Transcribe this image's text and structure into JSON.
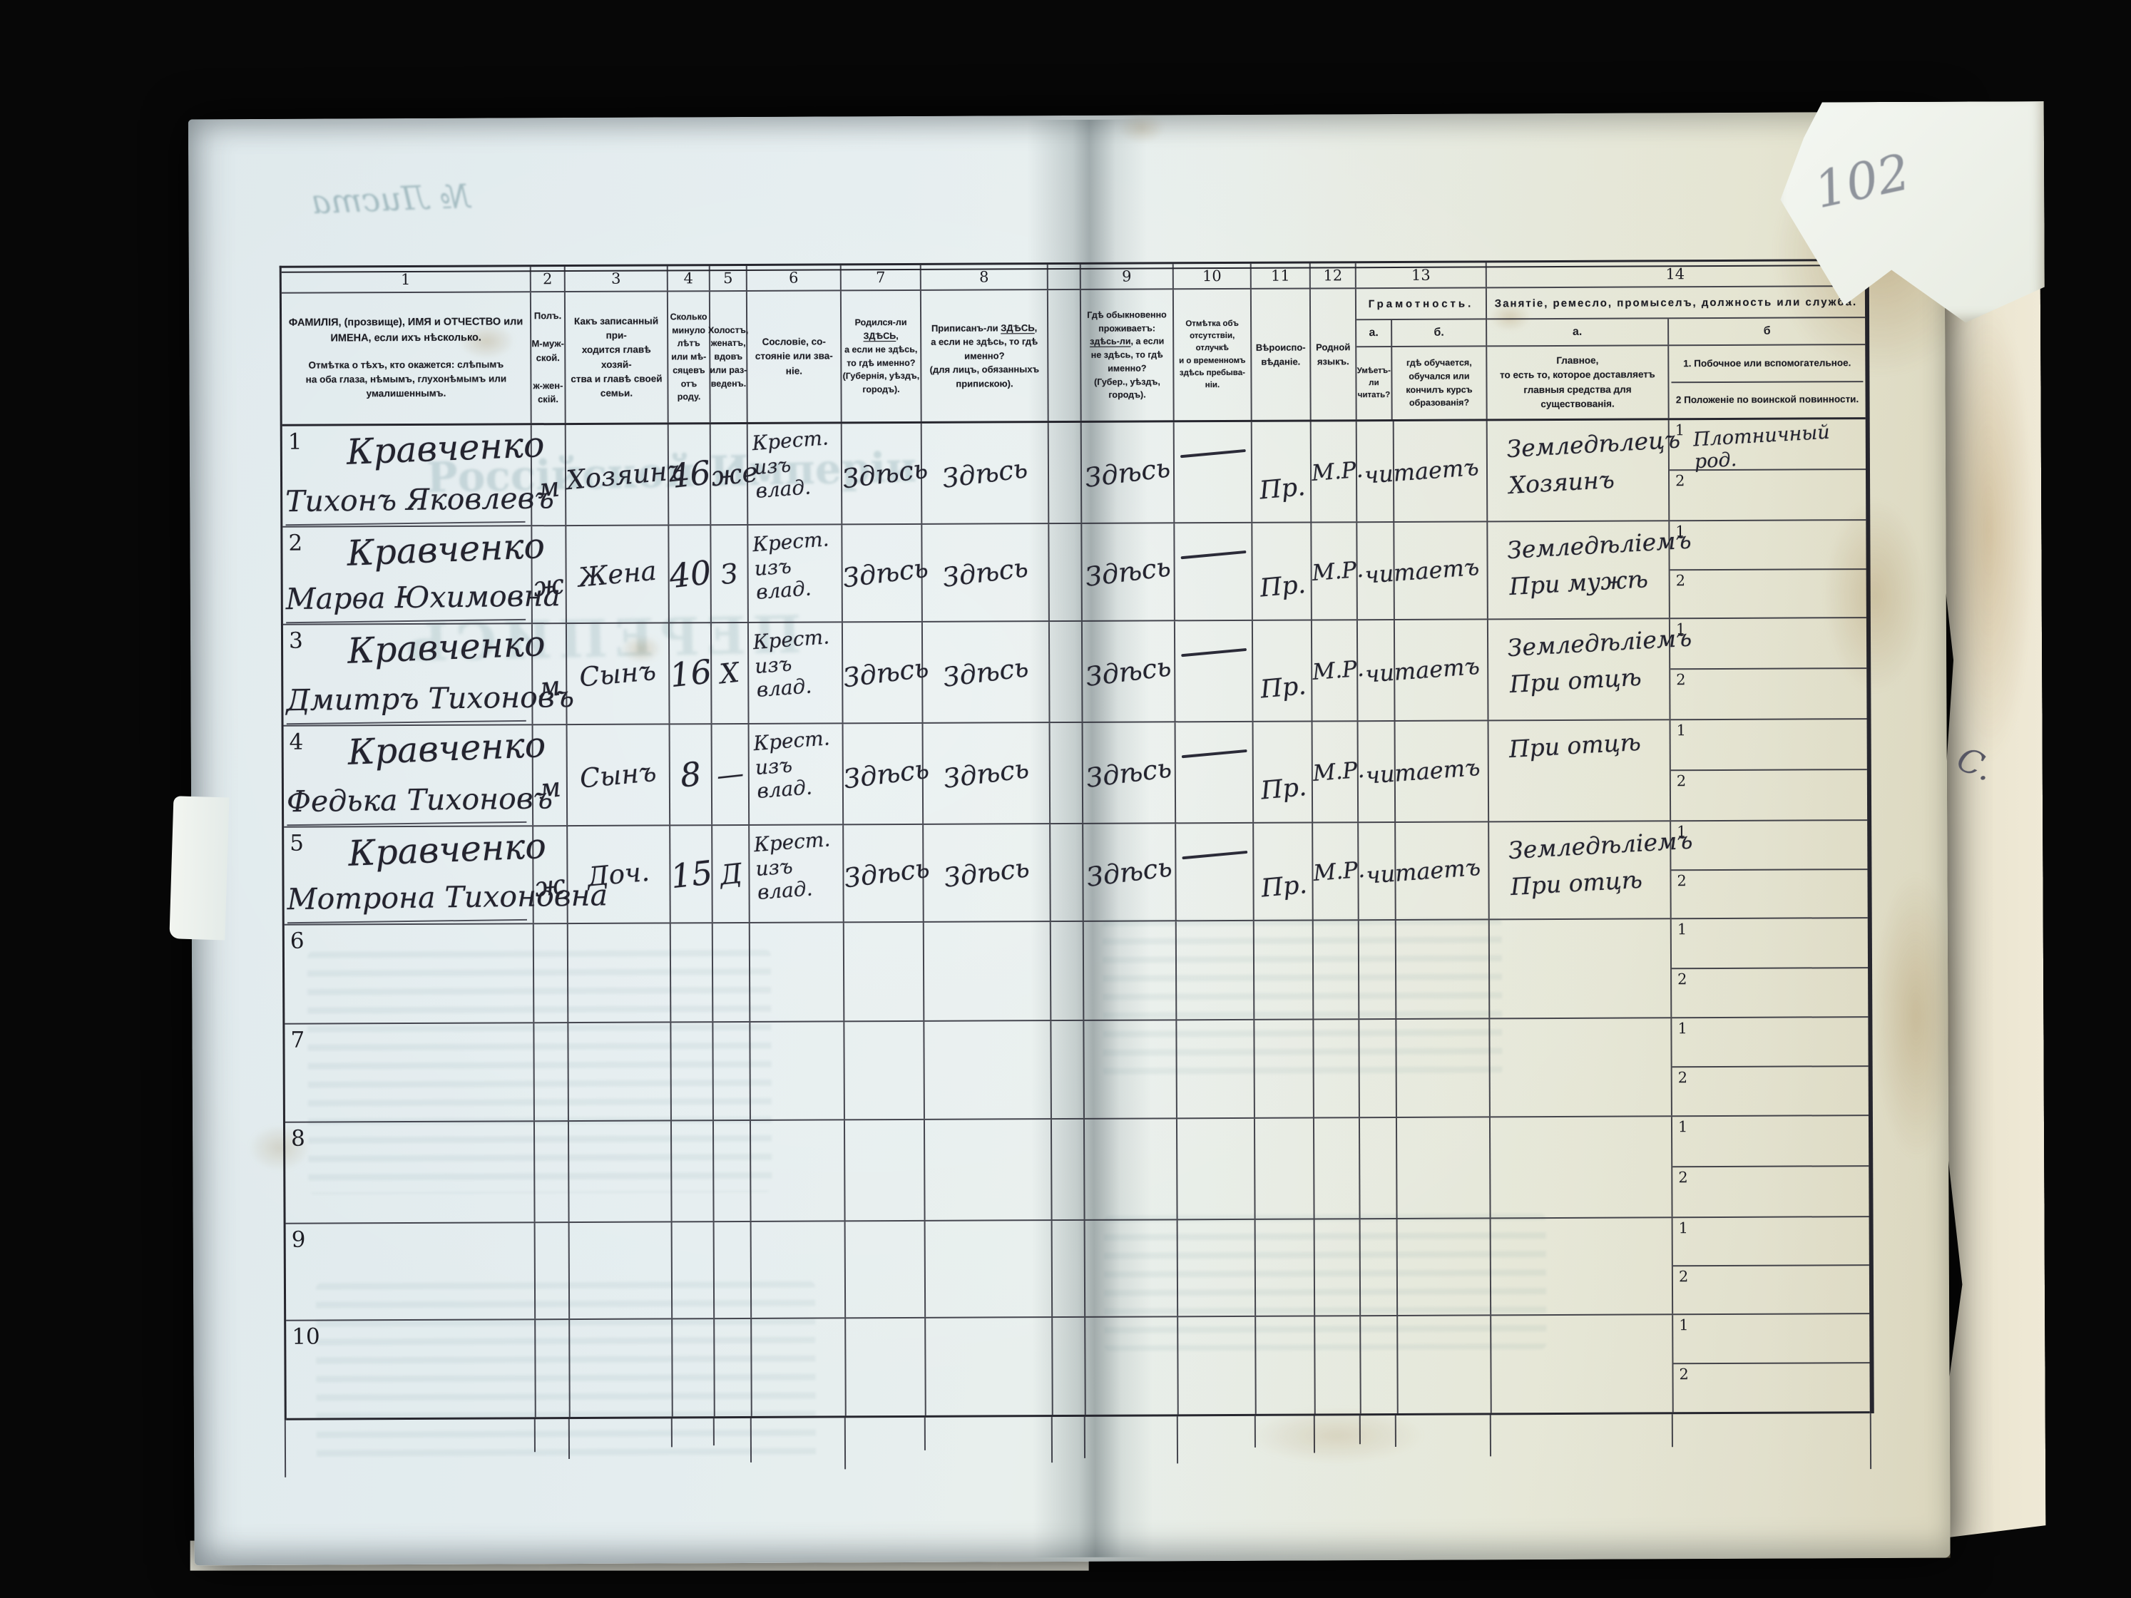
{
  "scan": {
    "page_number": "102",
    "ghosts": {
      "sheet_label": "№ Листа",
      "bleed_title": "Россійской Имперіи",
      "bleed_caps": "ПЕРЕПИСЬ"
    },
    "margin_mark": "С."
  },
  "table": {
    "column_numbers": [
      "1",
      "2",
      "3",
      "4",
      "5",
      "6",
      "7",
      "8",
      "9",
      "10",
      "11",
      "12",
      "13",
      "14"
    ],
    "headers": {
      "c1_main": "ФАМИЛІЯ, (прозвище), ИМЯ и ОТЧЕСТВО или\nИМЕНА, если ихъ нѣсколько.",
      "c1_note": "Отмѣтка о тѣхъ, кто окажется: слѣпымъ\nна оба глаза, нѣмымъ, глухонѣмымъ или\nумалишеннымъ.",
      "c2": "Полъ.\n\nМ-муж-\nской.\n\nж-жен-\nскій.",
      "c3": "Какъ записанный при-\nходится главѣ хозяй-\nства и главѣ своей\nсемьи.",
      "c4": "Сколько\nминуло\nлѣтъ\nили мѣ-\nсяцевъ\nотъ роду.",
      "c5": "Холостъ,\nженатъ,\nвдовъ\nили раз-\nведенъ.",
      "c6": "Сословіе, со-\nстояніе или зва-\nніе.",
      "c7": "Родился-ли ЗДѢСЬ,\nа если не здѣсь,\nто гдѣ именно?\n(Губернія, уѣздъ, городъ).",
      "c8": "Приписанъ-ли ЗДѢСЬ,\nа если не здѣсь, то гдѣ\nименно?\n(для лицъ, обязанныхъ\nприпискою).",
      "c9": "Гдѣ обыкновенно\nпроживаетъ:\nздѣсь-ли, а если\nне здѣсь, то гдѣ\nименно?\n(Губер., уѣздъ, городъ).",
      "c10": "Отмѣтка объ\nотсутствіи, отлучкѣ\nи о временномъ\nздѣсь пребыва-\nніи.",
      "c11": "Вѣроиспо-\nвѣданіе.",
      "c12": "Родной\nязыкъ.",
      "c13_title": "Грамотность.",
      "c13a_letter": "а.",
      "c13b_letter": "б.",
      "c13a": "Умѣетъ-\nли\nчитать?",
      "c13b": "гдѣ обучается,\nобучался или\nкончилъ курсъ\nобразованія?",
      "c14_title": "Занятіе, ремесло, промыселъ, должность или служба.",
      "c14a_letter": "а.",
      "c14b_letter": "б",
      "c14a": "Главное,\nто есть то, которое доставляетъ\nглавныя средства для существованія.",
      "c14b_1": "1. Побочное или вспомогательное.",
      "c14b_2": "2  Положеніе по воинской повинности."
    },
    "rows": [
      {
        "n": "1",
        "surname": "Кравченко",
        "name": "Тихонъ Яковлевъ",
        "sex": "м",
        "relation": "Хозяинъ",
        "age": "46",
        "marital": "же",
        "estate": "Крест. изъ\nвлад.",
        "born": "Здѣсь",
        "registered": "Здѣсь",
        "resides": "Здѣсь",
        "absence": "—",
        "religion": "Пр.",
        "language": "М.Р.",
        "literacy": "читаетъ",
        "occupation": "Земледѣлецъ\nХозяинъ",
        "side": "Плотничный род."
      },
      {
        "n": "2",
        "surname": "Кравченко",
        "name": "Марѳа Юхимовна",
        "sex": "ж",
        "relation": "Жена",
        "age": "40",
        "marital": "З",
        "estate": "Крест. изъ\nвлад.",
        "born": "Здѣсь",
        "registered": "Здѣсь",
        "resides": "Здѣсь",
        "absence": "—",
        "religion": "Пр.",
        "language": "М.Р.",
        "literacy": "читаетъ",
        "occupation": "Земледѣліемъ\nПри мужѣ",
        "side": ""
      },
      {
        "n": "3",
        "surname": "Кравченко",
        "name": "Дмитръ Тихоновъ",
        "sex": "м",
        "relation": "Сынъ",
        "age": "16",
        "marital": "Х",
        "estate": "Крест. изъ\nвлад.",
        "born": "Здѣсь",
        "registered": "Здѣсь",
        "resides": "Здѣсь",
        "absence": "—",
        "religion": "Пр.",
        "language": "М.Р.",
        "literacy": "читаетъ",
        "occupation": "Земледѣліемъ\nПри отцѣ",
        "side": ""
      },
      {
        "n": "4",
        "surname": "Кравченко",
        "name": "Федька Тихоновъ",
        "sex": "м",
        "relation": "Сынъ",
        "age": "8",
        "marital": "—",
        "estate": "Крест. изъ\nвлад.",
        "born": "Здѣсь",
        "registered": "Здѣсь",
        "resides": "Здѣсь",
        "absence": "—",
        "religion": "Пр.",
        "language": "М.Р.",
        "literacy": "читаетъ",
        "occupation": "При отцѣ",
        "side": ""
      },
      {
        "n": "5",
        "surname": "Кравченко",
        "name": "Мотрона Тихоновна",
        "sex": "ж",
        "relation": "Доч.",
        "age": "15",
        "marital": "Д",
        "estate": "Крест. изъ\nвлад.",
        "born": "Здѣсь",
        "registered": "Здѣсь",
        "resides": "Здѣсь",
        "absence": "—",
        "religion": "Пр.",
        "language": "М.Р.",
        "literacy": "читаетъ",
        "occupation": "Земледѣліемъ\nПри отцѣ",
        "side": ""
      },
      {
        "n": "6",
        "surname": "",
        "name": "",
        "sex": "",
        "relation": "",
        "age": "",
        "marital": "",
        "estate": "",
        "born": "",
        "registered": "",
        "resides": "",
        "absence": "",
        "religion": "",
        "language": "",
        "literacy": "",
        "occupation": "",
        "side": ""
      },
      {
        "n": "7",
        "surname": "",
        "name": "",
        "sex": "",
        "relation": "",
        "age": "",
        "marital": "",
        "estate": "",
        "born": "",
        "registered": "",
        "resides": "",
        "absence": "",
        "religion": "",
        "language": "",
        "literacy": "",
        "occupation": "",
        "side": ""
      },
      {
        "n": "8",
        "surname": "",
        "name": "",
        "sex": "",
        "relation": "",
        "age": "",
        "marital": "",
        "estate": "",
        "born": "",
        "registered": "",
        "resides": "",
        "absence": "",
        "religion": "",
        "language": "",
        "literacy": "",
        "occupation": "",
        "side": ""
      },
      {
        "n": "9",
        "surname": "",
        "name": "",
        "sex": "",
        "relation": "",
        "age": "",
        "marital": "",
        "estate": "",
        "born": "",
        "registered": "",
        "resides": "",
        "absence": "",
        "religion": "",
        "language": "",
        "literacy": "",
        "occupation": "",
        "side": ""
      },
      {
        "n": "10",
        "surname": "",
        "name": "",
        "sex": "",
        "relation": "",
        "age": "",
        "marital": "",
        "estate": "",
        "born": "",
        "registered": "",
        "resides": "",
        "absence": "",
        "religion": "",
        "language": "",
        "literacy": "",
        "occupation": "",
        "side": ""
      }
    ]
  }
}
